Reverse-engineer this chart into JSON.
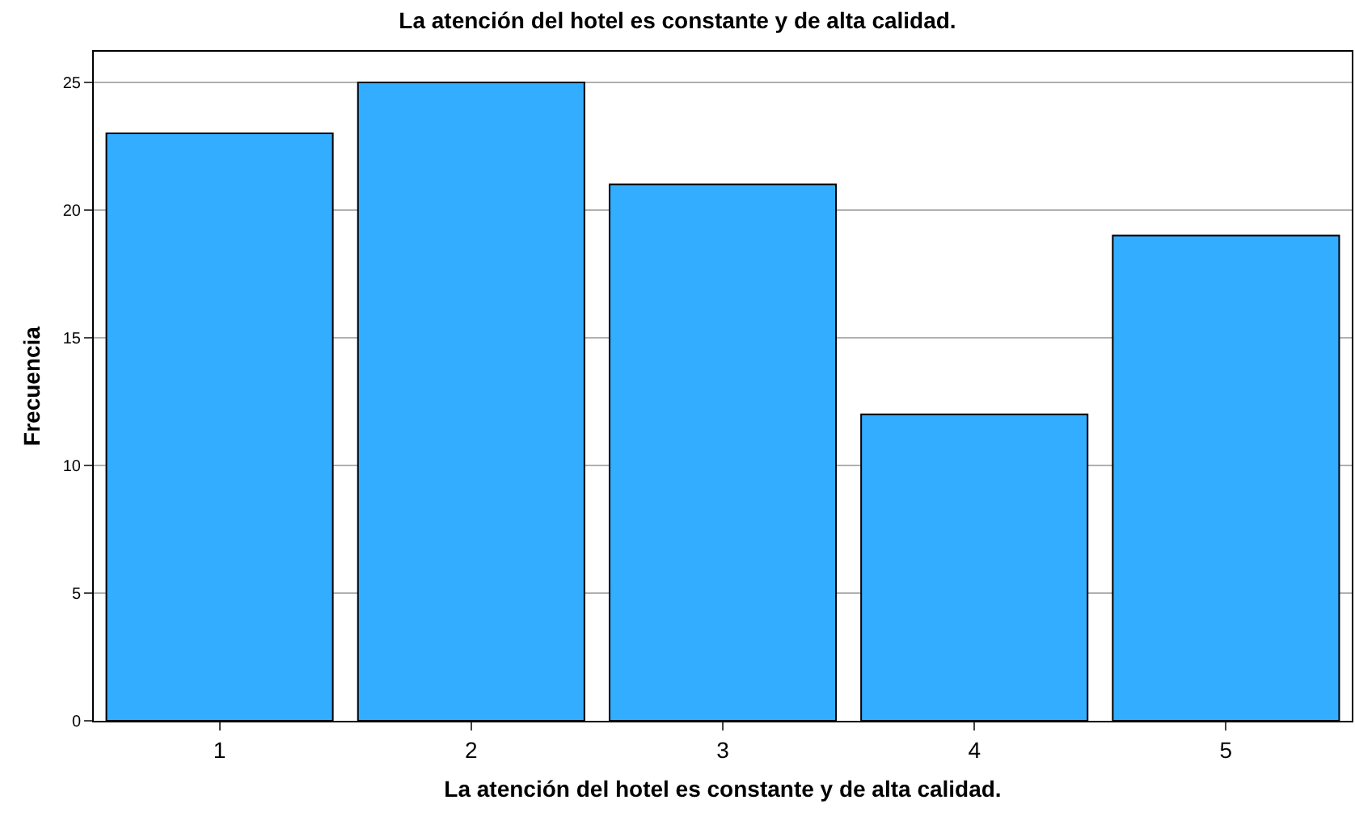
{
  "chart_data": {
    "type": "bar",
    "title": "La atención del hotel es constante y de alta calidad.",
    "xlabel": "La atención del hotel es constante y de alta calidad.",
    "ylabel": "Frecuencia",
    "categories": [
      "1",
      "2",
      "3",
      "4",
      "5"
    ],
    "values": [
      23,
      25,
      21,
      12,
      19
    ],
    "color": "#33adff",
    "ylim": [
      0,
      26.2
    ],
    "yticks": [
      0,
      5,
      10,
      15,
      20,
      25
    ],
    "grid": "y"
  }
}
